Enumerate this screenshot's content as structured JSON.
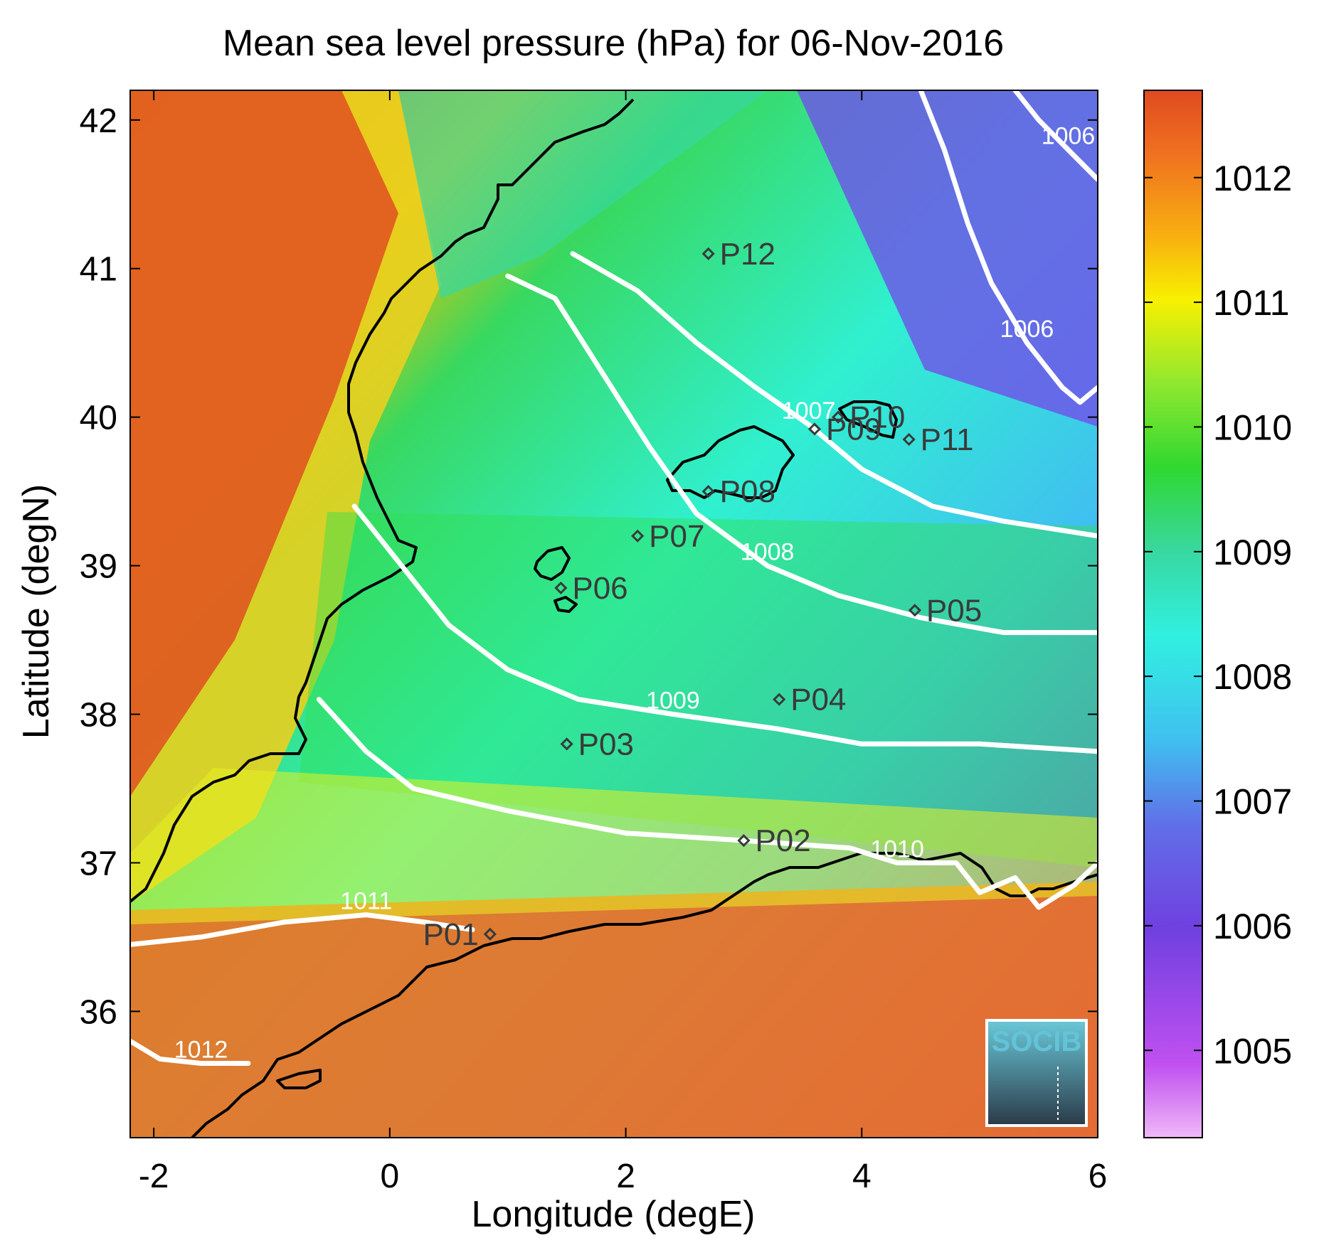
{
  "title": "Mean sea level pressure (hPa) for 06-Nov-2016",
  "xlabel": "Longitude (degE)",
  "ylabel": "Latitude (degN)",
  "logo": "SOCIB",
  "chart_data": {
    "type": "heatmap",
    "title": "Mean sea level pressure (hPa) for 06-Nov-2016",
    "xlabel": "Longitude (degE)",
    "ylabel": "Latitude (degN)",
    "xlim": [
      -2.2,
      6.0
    ],
    "ylim": [
      35.15,
      42.2
    ],
    "xticks": [
      -2,
      0,
      2,
      4,
      6
    ],
    "yticks": [
      36,
      37,
      38,
      39,
      40,
      41,
      42
    ],
    "colorbar": {
      "range": [
        1004.3,
        1012.7
      ],
      "ticks": [
        1005,
        1006,
        1007,
        1008,
        1009,
        1010,
        1011,
        1012
      ],
      "colors": [
        "#f0b8f8",
        "#b040f0",
        "#6860e8",
        "#40c0f0",
        "#30f0d0",
        "#38d860",
        "#30e030",
        "#b8f030",
        "#f8f000",
        "#f8b010",
        "#f07020",
        "#e04a20"
      ]
    },
    "contour_levels": [
      {
        "label": "1006",
        "path": [
          [
            4.5,
            42.2
          ],
          [
            4.7,
            41.8
          ],
          [
            4.9,
            41.3
          ],
          [
            5.1,
            40.9
          ],
          [
            5.4,
            40.5
          ],
          [
            5.7,
            40.2
          ],
          [
            5.85,
            40.1
          ],
          [
            6.0,
            40.2
          ]
        ]
      },
      {
        "label": "1006",
        "path": [
          [
            5.3,
            42.2
          ],
          [
            5.5,
            42.0
          ],
          [
            5.75,
            41.8
          ],
          [
            6.0,
            41.6
          ]
        ]
      },
      {
        "label": "1007",
        "path": [
          [
            1.55,
            41.1
          ],
          [
            2.1,
            40.85
          ],
          [
            2.6,
            40.5
          ],
          [
            3.1,
            40.2
          ],
          [
            3.55,
            39.95
          ],
          [
            4.0,
            39.65
          ],
          [
            4.6,
            39.4
          ],
          [
            5.2,
            39.3
          ],
          [
            6.0,
            39.2
          ]
        ]
      },
      {
        "label": "1008",
        "path": [
          [
            1.0,
            40.95
          ],
          [
            1.4,
            40.8
          ],
          [
            1.8,
            40.3
          ],
          [
            2.2,
            39.8
          ],
          [
            2.6,
            39.35
          ],
          [
            3.2,
            39.0
          ],
          [
            3.8,
            38.8
          ],
          [
            4.5,
            38.65
          ],
          [
            5.2,
            38.55
          ],
          [
            6.0,
            38.55
          ]
        ]
      },
      {
        "label": "1009",
        "path": [
          [
            -0.3,
            39.4
          ],
          [
            0.1,
            39.0
          ],
          [
            0.5,
            38.6
          ],
          [
            1.0,
            38.3
          ],
          [
            1.6,
            38.1
          ],
          [
            2.4,
            38.0
          ],
          [
            3.3,
            37.9
          ],
          [
            4.0,
            37.8
          ],
          [
            5.0,
            37.8
          ],
          [
            6.0,
            37.75
          ]
        ]
      },
      {
        "label": "1010",
        "path": [
          [
            -0.6,
            38.1
          ],
          [
            -0.2,
            37.75
          ],
          [
            0.2,
            37.5
          ],
          [
            1.0,
            37.35
          ],
          [
            2.0,
            37.2
          ],
          [
            3.0,
            37.15
          ],
          [
            3.9,
            37.1
          ],
          [
            4.3,
            37.0
          ],
          [
            4.8,
            37.0
          ],
          [
            5.0,
            36.8
          ],
          [
            5.3,
            36.9
          ],
          [
            5.5,
            36.7
          ],
          [
            5.8,
            36.85
          ],
          [
            6.0,
            37.0
          ]
        ]
      },
      {
        "label": "1011",
        "path": [
          [
            -2.2,
            36.45
          ],
          [
            -1.6,
            36.5
          ],
          [
            -0.9,
            36.6
          ],
          [
            -0.2,
            36.65
          ],
          [
            0.3,
            36.6
          ],
          [
            0.7,
            36.55
          ]
        ]
      },
      {
        "label": "1012",
        "path": [
          [
            -2.2,
            35.8
          ],
          [
            -1.95,
            35.68
          ],
          [
            -1.6,
            35.65
          ],
          [
            -1.2,
            35.65
          ]
        ]
      }
    ],
    "points": [
      {
        "name": "P01",
        "lon": 0.85,
        "lat": 36.52
      },
      {
        "name": "P02",
        "lon": 3.0,
        "lat": 37.15
      },
      {
        "name": "P03",
        "lon": 1.5,
        "lat": 37.8
      },
      {
        "name": "P04",
        "lon": 3.3,
        "lat": 38.1
      },
      {
        "name": "P05",
        "lon": 4.45,
        "lat": 38.7
      },
      {
        "name": "P06",
        "lon": 1.45,
        "lat": 38.85
      },
      {
        "name": "P07",
        "lon": 2.1,
        "lat": 39.2
      },
      {
        "name": "P08",
        "lon": 2.7,
        "lat": 39.5
      },
      {
        "name": "P09",
        "lon": 3.6,
        "lat": 39.92
      },
      {
        "name": "P10",
        "lon": 3.8,
        "lat": 40.0
      },
      {
        "name": "P11",
        "lon": 4.4,
        "lat": 39.85
      },
      {
        "name": "P12",
        "lon": 2.7,
        "lat": 41.1
      }
    ]
  }
}
